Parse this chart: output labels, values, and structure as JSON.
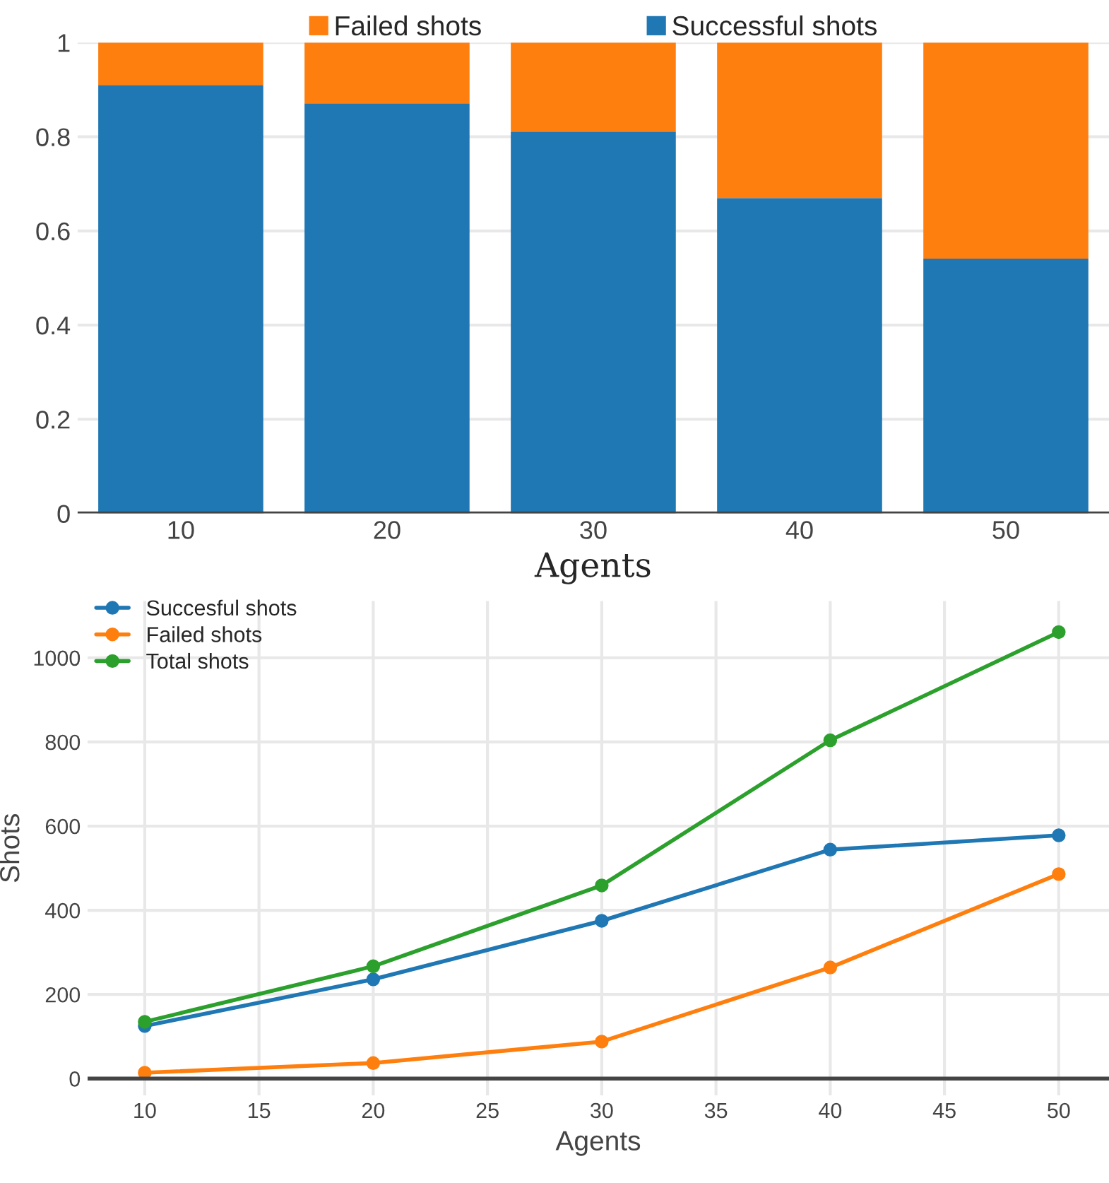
{
  "chart_data": [
    {
      "type": "bar",
      "stacked": true,
      "categories": [
        "10",
        "20",
        "30",
        "40",
        "50"
      ],
      "xlabel": "Agents",
      "series": [
        {
          "name": "Successful shots",
          "color": "#1f77b4",
          "values": [
            0.91,
            0.871,
            0.811,
            0.67,
            0.541
          ]
        },
        {
          "name": "Failed shots",
          "color": "#ff7f0e",
          "values": [
            0.09,
            0.129,
            0.189,
            0.33,
            0.459
          ]
        }
      ],
      "ylim": [
        0,
        1
      ],
      "yticks": [
        0,
        0.2,
        0.4,
        0.6,
        0.8,
        1
      ],
      "grid": "y",
      "legend": "top"
    },
    {
      "type": "line",
      "x": [
        10,
        20,
        30,
        40,
        50
      ],
      "xlabel": "Agents",
      "ylabel": "Shots",
      "marker": "circle",
      "line_style": "solid",
      "series": [
        {
          "name": "Succesful shots",
          "color": "#1f77b4",
          "values": [
            125,
            236,
            375,
            544,
            578
          ]
        },
        {
          "name": "Failed shots",
          "color": "#ff7f0e",
          "values": [
            14,
            37,
            88,
            264,
            486
          ]
        },
        {
          "name": "Total shots",
          "color": "#2ca02c",
          "values": [
            135,
            267,
            459,
            804,
            1061
          ]
        }
      ],
      "xlim": [
        7.5,
        52.2
      ],
      "xticks": [
        10,
        15,
        20,
        25,
        30,
        35,
        40,
        45,
        50
      ],
      "ylim": [
        -40,
        1135
      ],
      "yticks": [
        0,
        200,
        400,
        600,
        800,
        1000
      ],
      "grid": true,
      "legend": "top left"
    }
  ]
}
